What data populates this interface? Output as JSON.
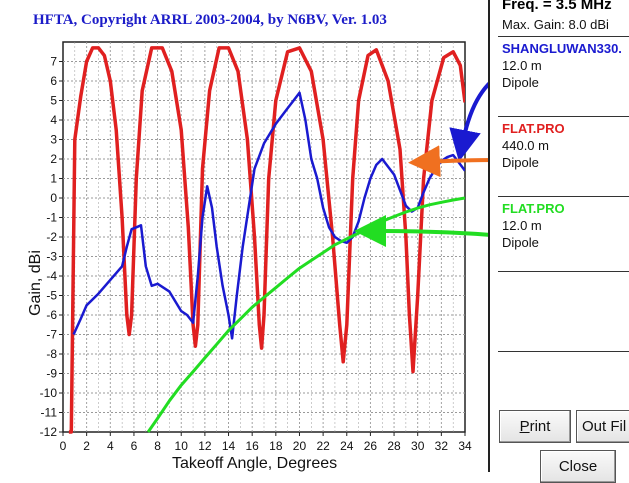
{
  "title": "HFTA, Copyright ARRL 2003-2004, by N6BV, Ver. 1.03",
  "panel": {
    "freq": "Freq. = 3.5 MHz",
    "max_gain": "Max. Gain: 8.0 dBi",
    "legend": [
      {
        "name": "SHANGLUWAN330.",
        "height": "12.0 m",
        "antenna": "Dipole",
        "color": "#1a1ad0"
      },
      {
        "name": "FLAT.PRO",
        "height": "440.0 m",
        "antenna": "Dipole",
        "color": "#e02020"
      },
      {
        "name": "FLAT.PRO",
        "height": "12.0 m",
        "antenna": "Dipole",
        "color": "#22dd22"
      }
    ],
    "print_label": "Print",
    "print_accel": "P",
    "print_rest": "rint",
    "out_file_label": "Out Fil",
    "close_label": "Close"
  },
  "colors": {
    "blue": "#1a1ad0",
    "red": "#e02020",
    "green": "#22dd22",
    "orange": "#f07020",
    "grid": "#888888"
  },
  "chart_data": {
    "type": "line",
    "title": "HFTA, Copyright ARRL 2003-2004, by N6BV, Ver. 1.03",
    "xlabel": "Takeoff Angle, Degrees",
    "ylabel": "Gain, dBi",
    "xlim": [
      0,
      34
    ],
    "ylim": [
      -12,
      8
    ],
    "xticks": [
      0,
      2,
      4,
      6,
      8,
      10,
      12,
      14,
      16,
      18,
      20,
      22,
      24,
      26,
      28,
      30,
      32,
      34
    ],
    "yticks": [
      7,
      6,
      5,
      4,
      3,
      2,
      1,
      0,
      -1,
      -2,
      -3,
      -4,
      -5,
      -6,
      -7,
      -8,
      -9,
      -10,
      -11,
      -12
    ],
    "grid": true,
    "series": [
      {
        "name": "SHANGLUWAN330.",
        "color": "#1a1ad0",
        "x": [
          0.9,
          1.5,
          2.0,
          3.0,
          4.0,
          5.0,
          5.4,
          5.8,
          6.2,
          6.6,
          7.0,
          7.5,
          8.0,
          9.0,
          10.0,
          10.5,
          11.0,
          11.4,
          11.8,
          12.2,
          12.6,
          13.0,
          13.5,
          14.0,
          14.3,
          14.7,
          15.2,
          15.7,
          16.2,
          17.0,
          18.0,
          19.0,
          19.5,
          20.0,
          20.5,
          21.0,
          21.5,
          22.0,
          22.5,
          23.0,
          23.5,
          24.0,
          24.5,
          25.0,
          25.5,
          26.0,
          26.5,
          27.0,
          27.5,
          28.0,
          28.5,
          29.0,
          29.5,
          30.0,
          30.5,
          31.0,
          31.5,
          32.0,
          32.5,
          33.0,
          33.5,
          34.0
        ],
        "y": [
          -7.0,
          -6.2,
          -5.5,
          -4.9,
          -4.2,
          -3.5,
          -2.5,
          -1.6,
          -1.5,
          -1.4,
          -3.5,
          -4.5,
          -4.4,
          -4.8,
          -5.8,
          -6.0,
          -6.4,
          -4.0,
          -1.0,
          0.6,
          -0.5,
          -2.5,
          -4.5,
          -6.0,
          -7.2,
          -5.0,
          -2.5,
          -0.5,
          1.5,
          2.8,
          3.8,
          4.6,
          5.0,
          5.4,
          4.0,
          2.0,
          1.0,
          -0.5,
          -1.5,
          -2.0,
          -2.2,
          -2.3,
          -2.0,
          -1.2,
          0.0,
          1.0,
          1.7,
          2.0,
          1.6,
          1.2,
          0.4,
          -0.4,
          -0.7,
          -0.5,
          0.3,
          1.0,
          1.5,
          1.9,
          2.1,
          2.2,
          1.8,
          1.4
        ]
      },
      {
        "name": "FLAT.PRO",
        "color": "#e02020",
        "x": [
          0.5,
          0.7,
          1.0,
          1.5,
          2.0,
          2.5,
          3.0,
          3.5,
          4.0,
          4.5,
          5.0,
          5.4,
          5.6,
          5.8,
          6.2,
          6.7,
          7.5,
          8.4,
          9.2,
          10.0,
          10.6,
          11.0,
          11.2,
          11.4,
          11.8,
          12.4,
          13.2,
          14.0,
          14.8,
          15.6,
          16.2,
          16.6,
          16.8,
          17.0,
          17.4,
          18.0,
          19.0,
          20.0,
          21.0,
          22.0,
          22.8,
          23.4,
          23.7,
          24.0,
          24.5,
          25.0,
          25.8,
          26.5,
          27.5,
          28.5,
          29.0,
          29.3,
          29.6,
          30.0,
          30.5,
          31.2,
          32.2,
          33.0,
          33.6,
          34.0
        ],
        "y": [
          -12.0,
          -12.0,
          3.0,
          5.2,
          7.0,
          7.7,
          7.7,
          7.3,
          6.0,
          3.5,
          -1.0,
          -6.0,
          -7.0,
          -6.0,
          1.0,
          5.5,
          7.7,
          7.7,
          6.5,
          3.5,
          -1.5,
          -6.5,
          -7.6,
          -6.5,
          1.5,
          5.5,
          7.7,
          7.7,
          6.5,
          3.0,
          -2.0,
          -6.5,
          -7.7,
          -6.0,
          1.0,
          5.0,
          7.5,
          7.7,
          6.5,
          3.0,
          -2.0,
          -6.5,
          -8.4,
          -6.5,
          1.0,
          5.0,
          7.3,
          7.6,
          6.0,
          2.5,
          -2.0,
          -6.0,
          -8.9,
          -5.0,
          1.0,
          5.0,
          7.2,
          7.5,
          6.8,
          4.9
        ]
      },
      {
        "name": "FLAT.PRO",
        "color": "#22dd22",
        "x": [
          7.2,
          8,
          9,
          10,
          11,
          12,
          13,
          14,
          15,
          16,
          17,
          18,
          19,
          20,
          21,
          22,
          23,
          24,
          25,
          26,
          27,
          28,
          29,
          30,
          31,
          32,
          33,
          34
        ],
        "y": [
          -12.0,
          -11.3,
          -10.4,
          -9.6,
          -8.9,
          -8.2,
          -7.5,
          -6.8,
          -6.2,
          -5.6,
          -5.1,
          -4.6,
          -4.1,
          -3.6,
          -3.2,
          -2.8,
          -2.4,
          -2.1,
          -1.8,
          -1.5,
          -1.2,
          -0.95,
          -0.72,
          -0.52,
          -0.35,
          -0.22,
          -0.1,
          0.0
        ]
      }
    ]
  }
}
